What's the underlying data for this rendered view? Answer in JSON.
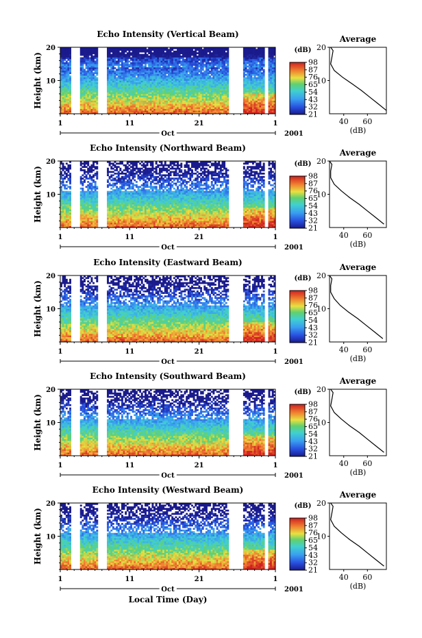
{
  "figure": {
    "shared_xlabel": "Local Time (Day)"
  },
  "colorbar": {
    "unit": "(dB)",
    "ticks": [
      "98",
      "87",
      "76",
      "65",
      "54",
      "43",
      "32",
      "21"
    ]
  },
  "avg_panel": {
    "title": "Average",
    "xticks": [
      "40",
      "60"
    ],
    "xlabel": "(dB)",
    "yticks": [
      "20",
      "10"
    ]
  },
  "chart_data": [
    {
      "type": "heatmap",
      "title": "Echo Intensity (Vertical Beam)",
      "ylabel": "Height (km)",
      "yticks": [
        "20",
        "10"
      ],
      "xticks": [
        "1",
        "11",
        "21",
        "1"
      ],
      "month_label": "Oct",
      "year_label": "2001",
      "x": [
        1,
        32
      ],
      "ylim": [
        0,
        20
      ],
      "data_gaps_day": [
        [
          2.6,
          3.9
        ],
        [
          6.5,
          7.8
        ],
        [
          25.2,
          27.4
        ],
        [
          30.4,
          31.0
        ]
      ],
      "colorbar": {
        "min": 21,
        "max": 98,
        "unit": "dB"
      },
      "average_profile": {
        "height_km": [
          1,
          3,
          5,
          7,
          9,
          11,
          13,
          15,
          17,
          19,
          20
        ],
        "intensity_db": [
          76,
          69,
          62,
          55,
          47,
          39,
          32,
          29,
          30,
          31,
          29
        ]
      }
    },
    {
      "type": "heatmap",
      "title": "Echo Intensity (Northward Beam)",
      "ylabel": "Height (km)",
      "yticks": [
        "20",
        "10"
      ],
      "xticks": [
        "1",
        "11",
        "21",
        "1"
      ],
      "month_label": "Oct",
      "year_label": "2001",
      "x": [
        1,
        32
      ],
      "ylim": [
        0,
        20
      ],
      "data_gaps_day": [
        [
          2.6,
          3.9
        ],
        [
          6.5,
          7.8
        ],
        [
          25.2,
          27.4
        ],
        [
          30.4,
          31.0
        ]
      ],
      "colorbar": {
        "min": 21,
        "max": 98,
        "unit": "dB"
      },
      "average_profile": {
        "height_km": [
          1,
          3,
          5,
          7,
          9,
          11,
          13,
          15,
          17,
          19,
          20
        ],
        "intensity_db": [
          74,
          67,
          60,
          53,
          45,
          38,
          32,
          29,
          29,
          30,
          28
        ]
      }
    },
    {
      "type": "heatmap",
      "title": "Echo Intensity (Eastward Beam)",
      "ylabel": "Height (km)",
      "yticks": [
        "20",
        "10"
      ],
      "xticks": [
        "1",
        "11",
        "21",
        "1"
      ],
      "month_label": "Oct",
      "year_label": "2001",
      "x": [
        1,
        32
      ],
      "ylim": [
        0,
        20
      ],
      "data_gaps_day": [
        [
          2.6,
          3.9
        ],
        [
          6.5,
          7.8
        ],
        [
          25.2,
          27.4
        ],
        [
          30.4,
          31.0
        ]
      ],
      "colorbar": {
        "min": 21,
        "max": 98,
        "unit": "dB"
      },
      "average_profile": {
        "height_km": [
          1,
          3,
          5,
          7,
          9,
          11,
          13,
          15,
          17,
          19,
          20
        ],
        "intensity_db": [
          73,
          66,
          59,
          52,
          44,
          37,
          32,
          29,
          29,
          30,
          28
        ]
      }
    },
    {
      "type": "heatmap",
      "title": "Echo Intensity (Southward Beam)",
      "ylabel": "Height (km)",
      "yticks": [
        "20",
        "10"
      ],
      "xticks": [
        "1",
        "11",
        "21",
        "1"
      ],
      "month_label": "Oct",
      "year_label": "2001",
      "x": [
        1,
        32
      ],
      "ylim": [
        0,
        20
      ],
      "data_gaps_day": [
        [
          2.6,
          3.9
        ],
        [
          6.5,
          7.8
        ],
        [
          25.2,
          27.4
        ],
        [
          30.4,
          31.0
        ]
      ],
      "colorbar": {
        "min": 21,
        "max": 98,
        "unit": "dB"
      },
      "average_profile": {
        "height_km": [
          1,
          3,
          5,
          7,
          9,
          11,
          13,
          15,
          17,
          19,
          20
        ],
        "intensity_db": [
          74,
          67,
          60,
          53,
          45,
          38,
          32,
          29,
          30,
          31,
          29
        ]
      }
    },
    {
      "type": "heatmap",
      "title": "Echo Intensity (Westward Beam)",
      "ylabel": "Height (km)",
      "yticks": [
        "20",
        "10"
      ],
      "xticks": [
        "1",
        "11",
        "21",
        "1"
      ],
      "month_label": "Oct",
      "year_label": "2001",
      "x": [
        1,
        32
      ],
      "ylim": [
        0,
        20
      ],
      "data_gaps_day": [
        [
          2.6,
          3.9
        ],
        [
          6.5,
          7.8
        ],
        [
          25.2,
          27.4
        ],
        [
          30.4,
          31.0
        ]
      ],
      "colorbar": {
        "min": 21,
        "max": 98,
        "unit": "dB"
      },
      "average_profile": {
        "height_km": [
          1,
          3,
          5,
          7,
          9,
          11,
          13,
          15,
          17,
          19,
          20
        ],
        "intensity_db": [
          74,
          67,
          60,
          53,
          45,
          38,
          32,
          29,
          30,
          31,
          29
        ]
      }
    }
  ]
}
